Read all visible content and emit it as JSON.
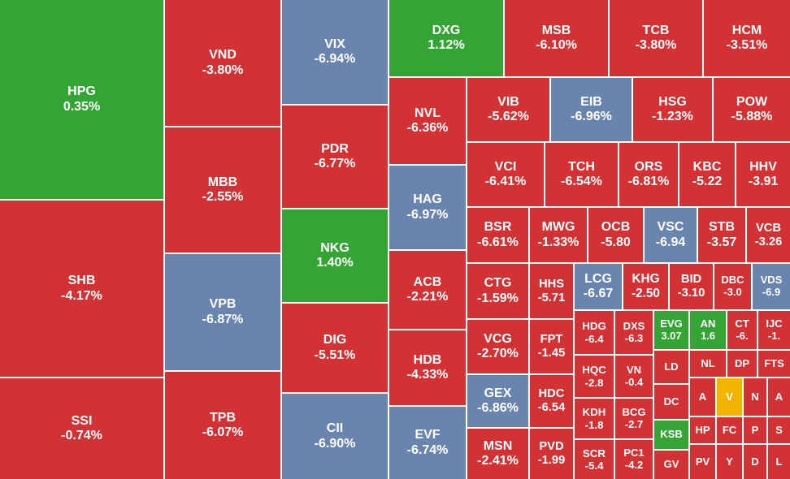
{
  "tiles": [
    {
      "ticker": "HPG",
      "change": "0.35%",
      "color": "#34a534"
    },
    {
      "ticker": "SHB",
      "change": "-4.17%",
      "color": "#d33133"
    },
    {
      "ticker": "SSI",
      "change": "-0.74%",
      "color": "#d33133"
    },
    {
      "ticker": "VND",
      "change": "-3.80%",
      "color": "#d33133"
    },
    {
      "ticker": "MBB",
      "change": "-2.55%",
      "color": "#d33133"
    },
    {
      "ticker": "VPB",
      "change": "-6.87%",
      "color": "#6a84b0"
    },
    {
      "ticker": "TPB",
      "change": "-6.07%",
      "color": "#d33133"
    },
    {
      "ticker": "VIX",
      "change": "-6.94%",
      "color": "#6a84b0"
    },
    {
      "ticker": "PDR",
      "change": "-6.77%",
      "color": "#d33133"
    },
    {
      "ticker": "NKG",
      "change": "1.40%",
      "color": "#34a534"
    },
    {
      "ticker": "DIG",
      "change": "-5.51%",
      "color": "#d33133"
    },
    {
      "ticker": "CII",
      "change": "-6.90%",
      "color": "#6a84b0"
    },
    {
      "ticker": "DXG",
      "change": "1.12%",
      "color": "#34a534"
    },
    {
      "ticker": "MSB",
      "change": "-6.10%",
      "color": "#d33133"
    },
    {
      "ticker": "TCB",
      "change": "-3.80%",
      "color": "#d33133"
    },
    {
      "ticker": "HCM",
      "change": "-3.51%",
      "color": "#d33133"
    },
    {
      "ticker": "NVL",
      "change": "-6.36%",
      "color": "#d33133"
    },
    {
      "ticker": "HAG",
      "change": "-6.97%",
      "color": "#6a84b0"
    },
    {
      "ticker": "ACB",
      "change": "-2.21%",
      "color": "#d33133"
    },
    {
      "ticker": "HDB",
      "change": "-4.33%",
      "color": "#d33133"
    },
    {
      "ticker": "EVF",
      "change": "-6.74%",
      "color": "#6a84b0"
    },
    {
      "ticker": "VIB",
      "change": "-5.62%",
      "color": "#d33133"
    },
    {
      "ticker": "EIB",
      "change": "-6.96%",
      "color": "#6a84b0"
    },
    {
      "ticker": "HSG",
      "change": "-1.23%",
      "color": "#d33133"
    },
    {
      "ticker": "POW",
      "change": "-5.88%",
      "color": "#d33133"
    },
    {
      "ticker": "VCI",
      "change": "-6.41%",
      "color": "#d33133"
    },
    {
      "ticker": "TCH",
      "change": "-6.54%",
      "color": "#d33133"
    },
    {
      "ticker": "ORS",
      "change": "-6.81%",
      "color": "#d33133"
    },
    {
      "ticker": "KBC",
      "change": "-5.22",
      "color": "#d33133"
    },
    {
      "ticker": "HHV",
      "change": "-3.91",
      "color": "#d33133"
    },
    {
      "ticker": "BSR",
      "change": "-6.61%",
      "color": "#d33133"
    },
    {
      "ticker": "MWG",
      "change": "-1.33%",
      "color": "#d33133"
    },
    {
      "ticker": "OCB",
      "change": "-5.80",
      "color": "#d33133"
    },
    {
      "ticker": "VSC",
      "change": "-6.94",
      "color": "#6a84b0"
    },
    {
      "ticker": "STB",
      "change": "-3.57",
      "color": "#d33133"
    },
    {
      "ticker": "VCB",
      "change": "-3.26",
      "color": "#d33133"
    },
    {
      "ticker": "CTG",
      "change": "-1.59%",
      "color": "#d33133"
    },
    {
      "ticker": "VCG",
      "change": "-2.70%",
      "color": "#d33133"
    },
    {
      "ticker": "GEX",
      "change": "-6.86%",
      "color": "#6a84b0"
    },
    {
      "ticker": "MSN",
      "change": "-2.41%",
      "color": "#d33133"
    },
    {
      "ticker": "HHS",
      "change": "-5.71",
      "color": "#d33133"
    },
    {
      "ticker": "FPT",
      "change": "-1.45",
      "color": "#d33133"
    },
    {
      "ticker": "HDC",
      "change": "-6.54",
      "color": "#d33133"
    },
    {
      "ticker": "PVD",
      "change": "-1.99",
      "color": "#d33133"
    },
    {
      "ticker": "LCG",
      "change": "-6.67",
      "color": "#6a84b0"
    },
    {
      "ticker": "KHG",
      "change": "-2.50",
      "color": "#d33133"
    },
    {
      "ticker": "BID",
      "change": "-3.10",
      "color": "#d33133"
    },
    {
      "ticker": "DBC",
      "change": "-3.0",
      "color": "#d33133"
    },
    {
      "ticker": "VDS",
      "change": "-6.9",
      "color": "#6a84b0"
    },
    {
      "ticker": "HDG",
      "change": "-6.4",
      "color": "#d33133"
    },
    {
      "ticker": "HQC",
      "change": "-2.8",
      "color": "#d33133"
    },
    {
      "ticker": "KDH",
      "change": "-1.8",
      "color": "#d33133"
    },
    {
      "ticker": "SCR",
      "change": "-5.4",
      "color": "#d33133"
    },
    {
      "ticker": "DXS",
      "change": "-6.3",
      "color": "#d33133"
    },
    {
      "ticker": "VN",
      "change": "-0.4",
      "color": "#d33133"
    },
    {
      "ticker": "BCG",
      "change": "-2.7",
      "color": "#d33133"
    },
    {
      "ticker": "PC1",
      "change": "-4.2",
      "color": "#d33133"
    },
    {
      "ticker": "EVG",
      "change": "3.07",
      "color": "#34a534"
    },
    {
      "ticker": "LD",
      "color": "#d33133"
    },
    {
      "ticker": "DC",
      "color": "#d33133"
    },
    {
      "ticker": "KSB",
      "color": "#34a534"
    },
    {
      "ticker": "GV",
      "color": "#d33133"
    },
    {
      "ticker": "AN",
      "change": "1.6",
      "color": "#34a534"
    },
    {
      "ticker": "CT",
      "change": "-6.",
      "color": "#d33133"
    },
    {
      "ticker": "IJC",
      "change": "-1.",
      "color": "#d33133"
    },
    {
      "ticker": "NL",
      "color": "#d33133"
    },
    {
      "ticker": "DP",
      "color": "#d33133"
    },
    {
      "ticker": "FTS",
      "color": "#d33133"
    },
    {
      "ticker": "A",
      "color": "#d33133"
    },
    {
      "ticker": "V",
      "color": "#f2b400"
    },
    {
      "ticker": "N",
      "color": "#d33133"
    },
    {
      "ticker": "A",
      "color": "#d33133"
    },
    {
      "ticker": "HP",
      "color": "#d33133"
    },
    {
      "ticker": "FC",
      "color": "#d33133"
    },
    {
      "ticker": "P",
      "color": "#d33133"
    },
    {
      "ticker": "S",
      "color": "#d33133"
    },
    {
      "ticker": "PV",
      "color": "#d33133"
    },
    {
      "ticker": "Y",
      "color": "#d33133"
    },
    {
      "ticker": "D",
      "color": "#d33133"
    },
    {
      "ticker": "L",
      "color": "#d33133"
    }
  ]
}
